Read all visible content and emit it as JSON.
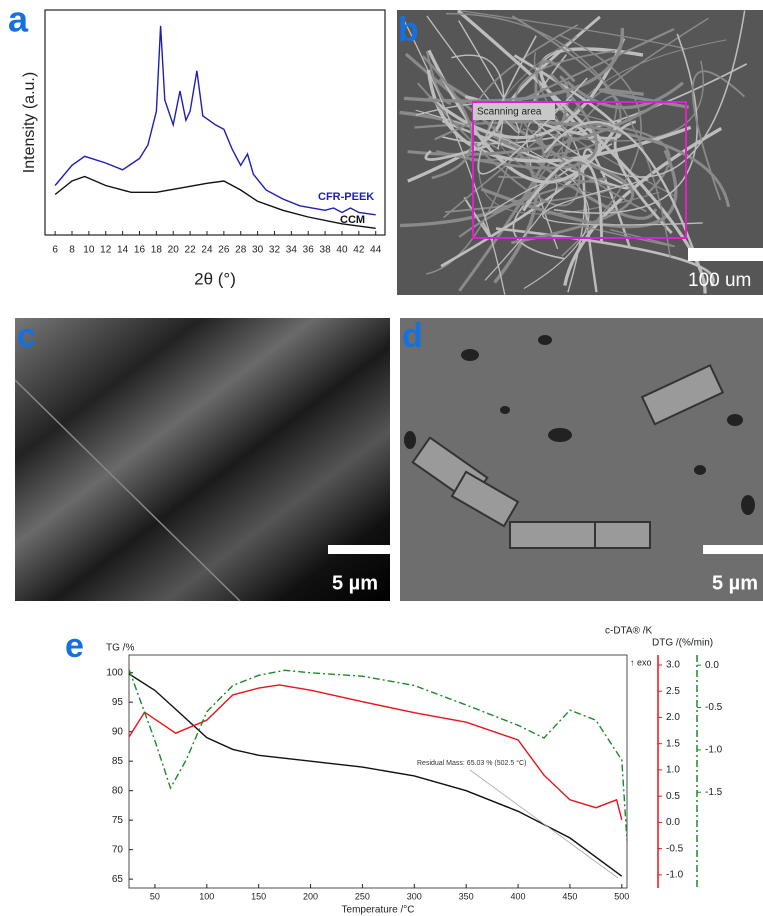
{
  "chart_data": [
    {
      "type": "line",
      "panel_label": "a",
      "y_label": "Intensity (a.u.)",
      "x_label": "2θ (°)",
      "xlim": [
        4.8,
        45.1
      ],
      "xticks": [
        6,
        8,
        10,
        12,
        14,
        16,
        18,
        20,
        22,
        24,
        26,
        28,
        30,
        32,
        34,
        36,
        38,
        40,
        42,
        44
      ],
      "ylim": [
        0,
        100
      ],
      "series": [
        {
          "name": "CFR-PEEK",
          "color": "#1f1fb4",
          "x": [
            6,
            8,
            9.5,
            12,
            14,
            16,
            17,
            18,
            18.5,
            19,
            20,
            20.8,
            21.5,
            22,
            22.8,
            23.5,
            25,
            26,
            27,
            28,
            28.8,
            29.5,
            31,
            33,
            35,
            38,
            39,
            40,
            41,
            42,
            44
          ],
          "values": [
            22,
            31,
            35,
            32,
            29,
            34,
            40,
            55,
            93,
            60,
            49,
            64,
            51,
            55,
            73,
            53,
            49,
            47,
            38,
            31,
            36,
            27,
            20,
            16,
            13,
            11,
            12,
            10,
            12,
            10,
            9
          ]
        },
        {
          "name": "CCM",
          "color": "#111111",
          "x": [
            6,
            8,
            9.5,
            12,
            15,
            18,
            21,
            24,
            26,
            28,
            30,
            33,
            36,
            40,
            44
          ],
          "values": [
            18,
            24,
            26,
            22,
            19,
            19,
            21,
            23,
            24,
            20,
            15,
            11,
            8,
            5,
            3
          ]
        }
      ]
    },
    {
      "type": "line",
      "panel_label": "e",
      "y_label": "TG /%",
      "y2_label": "c-DTA® /K",
      "y3_label": "DTG /(%/min)",
      "exo_label": "↑ exo",
      "x_label": "Temperature /°C",
      "annotation": "Residual Mass: 65.03 % (502.5 °C)",
      "xlim": [
        25,
        505
      ],
      "xticks": [
        50,
        100,
        150,
        200,
        250,
        300,
        350,
        400,
        450,
        500
      ],
      "ylim": [
        63.5,
        103
      ],
      "yticks": [
        65,
        70,
        75,
        80,
        85,
        90,
        95,
        100
      ],
      "y2lim": [
        -1.25,
        3.19
      ],
      "y2ticks": [
        {
          "value": 3,
          "label": "3.0"
        },
        2.5,
        {
          "value": 2,
          "label": "2.0"
        },
        1.5,
        {
          "value": 1,
          "label": "1.0"
        },
        0.5,
        {
          "value": 0,
          "label": "0.0"
        },
        -0.5,
        {
          "value": -1,
          "label": "-1.0"
        }
      ],
      "y3lim": [
        -2.63,
        0.12
      ],
      "y3ticks": [
        {
          "value": 0,
          "label": "0.0"
        },
        -0.5,
        {
          "value": -1,
          "label": "-1.0"
        },
        -1.5
      ],
      "series": [
        {
          "color": "#111111",
          "axis": "y",
          "line_style": "solid",
          "x": [
            25,
            50,
            75,
            100,
            125,
            150,
            200,
            250,
            300,
            350,
            400,
            450,
            500
          ],
          "values": [
            99.8,
            97,
            93,
            89,
            87,
            86,
            85,
            84,
            82.5,
            80,
            76.5,
            72,
            65.5
          ]
        },
        {
          "color": "#e8141b",
          "axis": "y2",
          "line_style": "solid",
          "x": [
            25,
            40,
            70,
            100,
            125,
            150,
            170,
            200,
            250,
            300,
            350,
            400,
            425,
            450,
            475,
            495,
            500
          ],
          "values": [
            1.63,
            2.1,
            1.7,
            1.95,
            2.43,
            2.56,
            2.62,
            2.52,
            2.3,
            2.09,
            1.91,
            1.57,
            0.9,
            0.43,
            0.28,
            0.43,
            0.05
          ]
        },
        {
          "color": "#1a8a2a",
          "axis": "y3",
          "line_style": "dashdot",
          "x": [
            25,
            50,
            65,
            80,
            100,
            125,
            150,
            175,
            200,
            250,
            300,
            350,
            400,
            425,
            450,
            475,
            500,
            505
          ],
          "values": [
            -0.05,
            -0.89,
            -1.45,
            -1.12,
            -0.55,
            -0.24,
            -0.12,
            -0.06,
            -0.09,
            -0.13,
            -0.24,
            -0.47,
            -0.71,
            -0.86,
            -0.53,
            -0.65,
            -1.12,
            -2.07
          ]
        }
      ]
    }
  ],
  "images": {
    "b": {
      "panel_label": "b",
      "annotation": "Scanning area",
      "scale_bar": "100 um"
    },
    "c": {
      "panel_label": "c",
      "scale_bar": "5 µm"
    },
    "d": {
      "panel_label": "d",
      "scale_bar": "5 µm"
    }
  }
}
